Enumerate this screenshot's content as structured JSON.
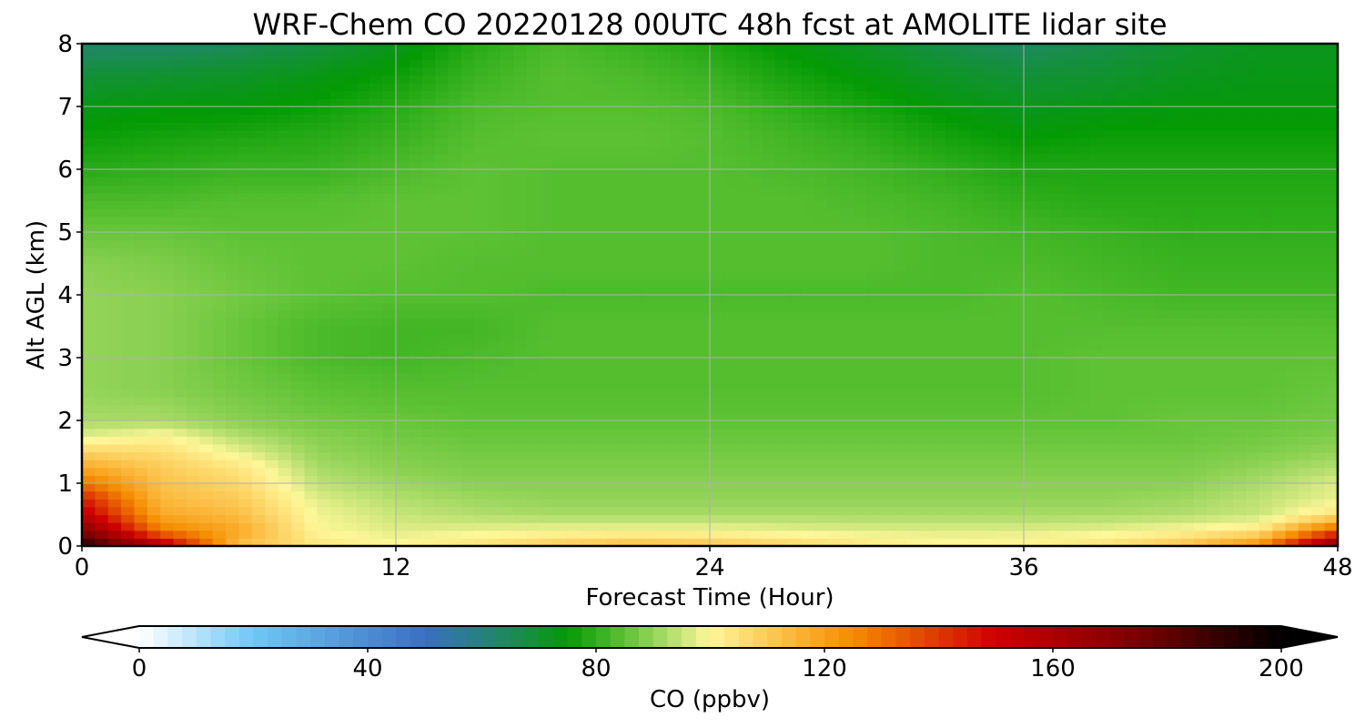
{
  "chart_data": {
    "type": "heatmap",
    "title": "WRF-Chem CO  20220128 00UTC 48h fcst at AMOLITE lidar site",
    "xlabel": "Forecast Time (Hour)",
    "ylabel": "Alt AGL (km)",
    "xlim": [
      0,
      48
    ],
    "ylim": [
      0,
      8
    ],
    "x_ticks": [
      "0",
      "12",
      "24",
      "36",
      "48"
    ],
    "y_ticks": [
      "0",
      "1",
      "2",
      "3",
      "4",
      "5",
      "6",
      "7",
      "8"
    ],
    "grid": true,
    "x": [
      0,
      3,
      6,
      9,
      12,
      15,
      18,
      21,
      24,
      27,
      30,
      33,
      36,
      39,
      42,
      45,
      48
    ],
    "y": [
      0,
      0.25,
      0.5,
      0.75,
      1,
      1.25,
      1.5,
      1.75,
      2,
      2.5,
      3,
      3.5,
      4,
      4.5,
      5,
      5.5,
      6,
      6.5,
      7,
      7.5,
      8
    ],
    "z": [
      [
        195,
        160,
        112,
        104,
        101,
        105,
        110,
        114,
        112,
        108,
        104,
        101,
        102,
        105,
        112,
        125,
        175
      ],
      [
        172,
        128,
        118,
        100,
        97,
        98,
        99,
        99,
        99,
        98,
        97,
        97,
        97,
        98,
        100,
        104,
        135
      ],
      [
        155,
        118,
        113,
        99,
        95,
        93,
        92,
        92,
        92,
        92,
        92,
        92,
        92,
        92,
        93,
        95,
        105
      ],
      [
        145,
        114,
        110,
        97,
        93,
        91,
        90,
        90,
        90,
        90,
        90,
        90,
        90,
        90,
        91,
        94,
        98
      ],
      [
        130,
        112,
        107,
        94,
        91,
        89,
        89,
        89,
        89,
        89,
        89,
        89,
        89,
        89,
        89,
        92,
        97
      ],
      [
        118,
        110,
        104,
        92,
        89,
        88,
        88,
        88,
        88,
        88,
        88,
        88,
        88,
        88,
        88,
        90,
        93
      ],
      [
        108,
        106,
        98,
        90,
        88,
        87,
        87,
        87,
        87,
        87,
        87,
        87,
        87,
        87,
        87,
        88,
        90
      ],
      [
        97,
        101,
        93,
        89,
        87,
        86,
        86,
        86,
        86,
        86,
        86,
        86,
        86,
        86,
        86,
        87,
        88
      ],
      [
        92,
        92,
        89,
        87,
        86,
        85,
        85,
        85,
        85,
        85,
        85,
        85,
        85,
        85,
        86,
        86,
        87
      ],
      [
        90,
        89,
        87,
        85,
        84,
        84,
        84,
        84,
        84,
        84,
        84,
        84,
        84,
        85,
        85,
        85,
        86
      ],
      [
        90,
        89,
        86,
        83,
        82,
        83,
        84,
        84,
        84,
        84,
        84,
        84,
        84,
        85,
        85,
        85,
        85
      ],
      [
        90,
        89,
        86,
        83,
        82,
        82,
        84,
        84,
        84,
        84,
        84,
        84,
        84,
        84,
        84,
        84,
        84
      ],
      [
        90,
        89,
        87,
        85,
        84,
        84,
        83,
        83,
        83,
        83,
        83,
        83,
        84,
        83,
        82,
        82,
        82
      ],
      [
        89,
        88,
        86,
        85,
        85,
        84,
        84,
        84,
        84,
        84,
        84,
        83,
        83,
        82,
        81,
        81,
        81
      ],
      [
        86,
        86,
        85,
        85,
        85,
        85,
        84,
        84,
        84,
        84,
        84,
        83,
        82,
        81,
        80,
        80,
        80
      ],
      [
        83,
        83,
        84,
        84,
        85,
        85,
        84,
        84,
        84,
        84,
        83,
        82,
        80,
        79,
        79,
        79,
        79
      ],
      [
        79,
        80,
        81,
        81,
        83,
        85,
        84,
        84,
        84,
        83,
        82,
        80,
        78,
        78,
        78,
        78,
        78
      ],
      [
        76,
        77,
        78,
        79,
        81,
        84,
        85,
        85,
        84,
        82,
        80,
        77,
        75,
        76,
        76,
        76,
        76
      ],
      [
        73,
        74,
        74,
        76,
        79,
        83,
        84,
        84,
        83,
        80,
        77,
        74,
        72,
        73,
        74,
        74,
        74
      ],
      [
        69,
        70,
        71,
        73,
        76,
        81,
        84,
        83,
        81,
        77,
        74,
        71,
        69,
        70,
        72,
        73,
        73
      ],
      [
        63,
        63,
        65,
        68,
        72,
        79,
        83,
        81,
        78,
        74,
        71,
        67,
        64,
        67,
        70,
        72,
        72
      ]
    ],
    "colorbar": {
      "label": "CO  (ppbv)",
      "range": [
        0,
        200
      ],
      "ticks": [
        "0",
        "40",
        "80",
        "120",
        "160",
        "200"
      ],
      "extend": "both",
      "colors": [
        {
          "value": 0,
          "color": "#ffffff"
        },
        {
          "value": 20,
          "color": "#6ec8f5"
        },
        {
          "value": 50,
          "color": "#3b6fc2"
        },
        {
          "value": 65,
          "color": "#1c8a5a"
        },
        {
          "value": 75,
          "color": "#049a04"
        },
        {
          "value": 85,
          "color": "#5ec234"
        },
        {
          "value": 93,
          "color": "#b4de6e"
        },
        {
          "value": 100,
          "color": "#fff799"
        },
        {
          "value": 115,
          "color": "#fbb437"
        },
        {
          "value": 125,
          "color": "#f58c00"
        },
        {
          "value": 150,
          "color": "#cd0000"
        },
        {
          "value": 175,
          "color": "#7a0000"
        },
        {
          "value": 200,
          "color": "#000000"
        }
      ]
    }
  }
}
